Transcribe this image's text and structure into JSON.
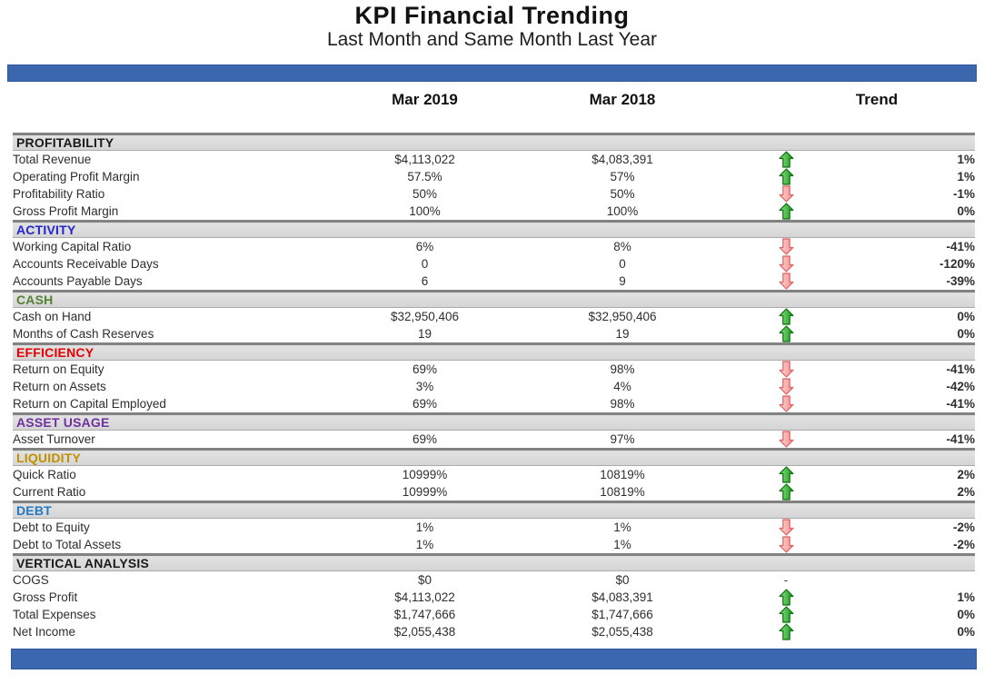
{
  "header": {
    "title": "KPI Financial Trending",
    "subtitle": "Last Month and Same Month Last Year"
  },
  "table": {
    "columns": {
      "mar2019": "Mar 2019",
      "mar2018": "Mar 2018",
      "trend": "Trend"
    },
    "sections": [
      {
        "name": "PROFITABILITY",
        "color": "#1a1a1a",
        "rows": [
          {
            "label": "Total Revenue",
            "v2019": "$4,113,022",
            "v2018": "$4,083,391",
            "trend_icon": "up",
            "trend": "1%"
          },
          {
            "label": "Operating Profit Margin",
            "v2019": "57.5%",
            "v2018": "57%",
            "trend_icon": "up",
            "trend": "1%"
          },
          {
            "label": "Profitability Ratio",
            "v2019": "50%",
            "v2018": "50%",
            "trend_icon": "down",
            "trend": "-1%"
          },
          {
            "label": "Gross Profit Margin",
            "v2019": "100%",
            "v2018": "100%",
            "trend_icon": "up",
            "trend": "0%"
          }
        ]
      },
      {
        "name": "ACTIVITY",
        "color": "#2525cb",
        "rows": [
          {
            "label": "Working Capital Ratio",
            "v2019": "6%",
            "v2018": "8%",
            "trend_icon": "down",
            "trend": "-41%"
          },
          {
            "label": "Accounts Receivable Days",
            "v2019": "0",
            "v2018": "0",
            "trend_icon": "down",
            "trend": "-120%"
          },
          {
            "label": "Accounts Payable Days",
            "v2019": "6",
            "v2018": "9",
            "trend_icon": "down",
            "trend": "-39%"
          }
        ]
      },
      {
        "name": "CASH",
        "color": "#548235",
        "rows": [
          {
            "label": "Cash on Hand",
            "v2019": "$32,950,406",
            "v2018": "$32,950,406",
            "trend_icon": "up",
            "trend": "0%"
          },
          {
            "label": "Months of Cash Reserves",
            "v2019": "19",
            "v2018": "19",
            "trend_icon": "up",
            "trend": "0%"
          }
        ]
      },
      {
        "name": "EFFICIENCY",
        "color": "#e80000",
        "rows": [
          {
            "label": "Return on Equity",
            "v2019": "69%",
            "v2018": "98%",
            "trend_icon": "down",
            "trend": "-41%"
          },
          {
            "label": "Return on Assets",
            "v2019": "3%",
            "v2018": "4%",
            "trend_icon": "down",
            "trend": "-42%"
          },
          {
            "label": "Return on Capital Employed",
            "v2019": "69%",
            "v2018": "98%",
            "trend_icon": "down",
            "trend": "-41%"
          }
        ]
      },
      {
        "name": "ASSET USAGE",
        "color": "#7030a0",
        "rows": [
          {
            "label": "Asset Turnover",
            "v2019": "69%",
            "v2018": "97%",
            "trend_icon": "down",
            "trend": "-41%"
          }
        ]
      },
      {
        "name": "LIQUIDITY",
        "color": "#bf9000",
        "rows": [
          {
            "label": "Quick Ratio",
            "v2019": "10999%",
            "v2018": "10819%",
            "trend_icon": "up",
            "trend": "2%"
          },
          {
            "label": "Current Ratio",
            "v2019": "10999%",
            "v2018": "10819%",
            "trend_icon": "up",
            "trend": "2%"
          }
        ]
      },
      {
        "name": "DEBT",
        "color": "#2479c4",
        "rows": [
          {
            "label": "Debt to Equity",
            "v2019": "1%",
            "v2018": "1%",
            "trend_icon": "down",
            "trend": "-2%"
          },
          {
            "label": "Debt to Total Assets",
            "v2019": "1%",
            "v2018": "1%",
            "trend_icon": "down",
            "trend": "-2%"
          }
        ]
      },
      {
        "name": "VERTICAL ANALYSIS",
        "color": "#1a1a1a",
        "rows": [
          {
            "label": "COGS",
            "v2019": "$0",
            "v2018": "$0",
            "trend_icon": "none",
            "trend": ""
          },
          {
            "label": "Gross Profit",
            "v2019": "$4,113,022",
            "v2018": "$4,083,391",
            "trend_icon": "up",
            "trend": "1%"
          },
          {
            "label": "Total Expenses",
            "v2019": "$1,747,666",
            "v2018": "$1,747,666",
            "trend_icon": "up",
            "trend": "0%"
          },
          {
            "label": "Net Income",
            "v2019": "$2,055,438",
            "v2018": "$2,055,438",
            "trend_icon": "up",
            "trend": "0%"
          }
        ]
      }
    ]
  },
  "colors": {
    "bar_blue": "#3a67ae",
    "section_header_bg": "#d9d9d9",
    "arrow_up_stroke": "#117511",
    "arrow_down_stroke": "#e06666",
    "trend_dash": "-"
  }
}
